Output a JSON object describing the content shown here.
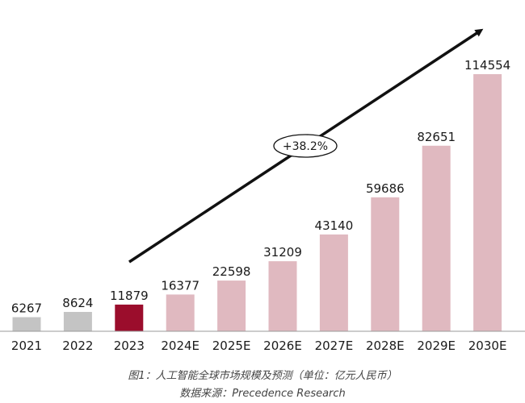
{
  "chart_data": {
    "type": "bar",
    "categories": [
      "2021",
      "2022",
      "2023",
      "2024E",
      "2025E",
      "2026E",
      "2027E",
      "2028E",
      "2029E",
      "2030E"
    ],
    "values": [
      6267,
      8624,
      11879,
      16377,
      22598,
      31209,
      43140,
      59686,
      82651,
      114554
    ],
    "bar_colors": [
      "#c4c4c4",
      "#c4c4c4",
      "#9b0d2c",
      "#e0b9c0",
      "#e0b9c0",
      "#e0b9c0",
      "#e0b9c0",
      "#e0b9c0",
      "#e0b9c0",
      "#e0b9c0"
    ],
    "ylim": [
      0,
      114554
    ],
    "grid": false,
    "annotation": "+38.2%"
  },
  "caption": {
    "title": "图1：人工智能全球市场规模及预测（单位：亿元人民币）",
    "source": "数据来源：Precedence Research"
  },
  "colors": {
    "axis": "#9a9a9a",
    "arrow": "#111111",
    "text": "#1a1a1a"
  }
}
